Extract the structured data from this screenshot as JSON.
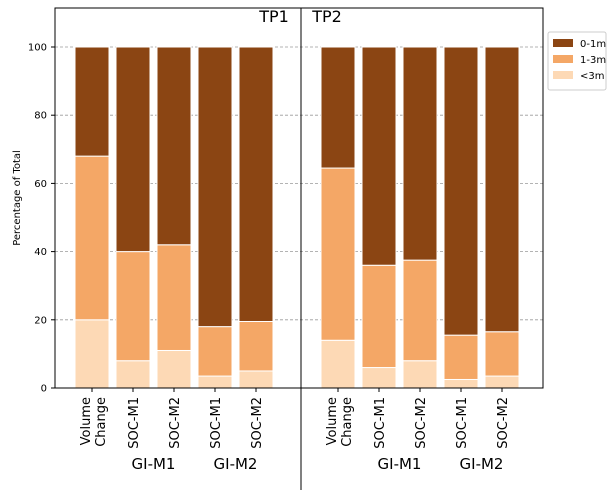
{
  "chart_data": {
    "type": "bar",
    "stacked": true,
    "ylabel": "Percentage of Total",
    "ylim": [
      0,
      100
    ],
    "yticks": [
      0,
      20,
      40,
      60,
      80,
      100
    ],
    "grid": true,
    "legend_position": "top-right",
    "panels": [
      {
        "title": "TP1",
        "categories": [
          "Volume\nChange",
          "SOC-M1",
          "SOC-M2",
          "SOC-M1",
          "SOC-M2"
        ],
        "groups": [
          {
            "label": "GI-M1",
            "categories": [
              1,
              2
            ]
          },
          {
            "label": "GI-M2",
            "categories": [
              3,
              4
            ]
          }
        ]
      },
      {
        "title": "TP2",
        "categories": [
          "Volume\nChange",
          "SOC-M1",
          "SOC-M2",
          "SOC-M1",
          "SOC-M2"
        ],
        "groups": [
          {
            "label": "GI-M1",
            "categories": [
              1,
              2
            ]
          },
          {
            "label": "GI-M2",
            "categories": [
              3,
              4
            ]
          }
        ]
      }
    ],
    "series": [
      {
        "name": "<3m",
        "color": "#fdd9b5",
        "tp1": [
          20,
          8,
          11,
          3.5,
          5
        ],
        "tp2": [
          14,
          6,
          8,
          2.5,
          3.5
        ]
      },
      {
        "name": "1-3m",
        "color": "#f4a766",
        "tp1": [
          48,
          32,
          31,
          14.5,
          14.5
        ],
        "tp2": [
          50.5,
          30,
          29.5,
          13,
          13
        ]
      },
      {
        "name": "0-1m",
        "color": "#8b4513",
        "tp1": [
          32,
          60,
          58,
          82,
          80.5
        ],
        "tp2": [
          35.5,
          64,
          62.5,
          84.5,
          83.5
        ]
      }
    ],
    "legend": [
      "0-1m",
      "1-3m",
      "<3m"
    ]
  }
}
